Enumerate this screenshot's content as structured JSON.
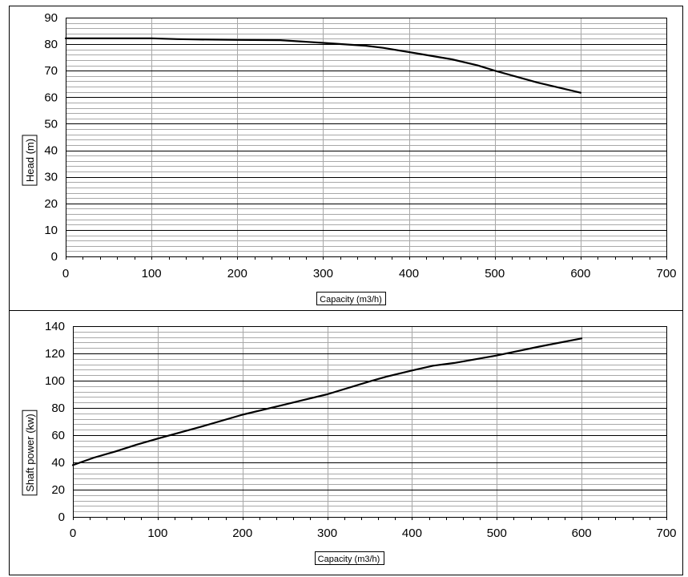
{
  "chart_data": [
    {
      "type": "line",
      "title": "",
      "xlabel": "Capacity (m3/h)",
      "ylabel": "Head (m)",
      "xlim": [
        0,
        700
      ],
      "ylim": [
        0,
        90
      ],
      "x_ticks": [
        "0",
        "100",
        "200",
        "300",
        "400",
        "500",
        "600",
        "700"
      ],
      "y_ticks": [
        "0",
        "10",
        "20",
        "30",
        "40",
        "50",
        "60",
        "70",
        "80",
        "90"
      ],
      "y_major_step": 10,
      "y_minor_step": 2,
      "grid": true,
      "series": [
        {
          "x": [
            0,
            50,
            100,
            130,
            150,
            200,
            250,
            300,
            350,
            370,
            400,
            450,
            480,
            500,
            550,
            600
          ],
          "y": [
            82.2,
            82.2,
            82.2,
            81.9,
            81.8,
            81.6,
            81.5,
            80.5,
            79.4,
            78.6,
            77.0,
            74.3,
            72.0,
            70.0,
            65.5,
            61.7
          ]
        }
      ]
    },
    {
      "type": "line",
      "title": "",
      "xlabel": "Capacity (m3/h)",
      "ylabel": "Shaft power (kw)",
      "xlim": [
        0,
        700
      ],
      "ylim": [
        0,
        140
      ],
      "x_ticks": [
        "0",
        "100",
        "200",
        "300",
        "400",
        "500",
        "600",
        "700"
      ],
      "y_ticks": [
        "0",
        "20",
        "40",
        "60",
        "80",
        "100",
        "120",
        "140"
      ],
      "y_major_step": 20,
      "y_minor_step": 4,
      "grid": true,
      "series": [
        {
          "x": [
            0,
            25,
            50,
            75,
            100,
            150,
            200,
            250,
            300,
            350,
            370,
            400,
            425,
            450,
            500,
            550,
            600
          ],
          "y": [
            38,
            43.5,
            48,
            53,
            57.5,
            66,
            75,
            82.5,
            90,
            99.5,
            103,
            107.5,
            111,
            113,
            118.5,
            125,
            131
          ]
        }
      ]
    }
  ]
}
